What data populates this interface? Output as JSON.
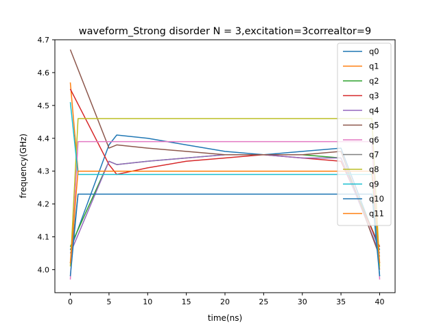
{
  "chart_data": {
    "type": "line",
    "title": "waveform_Strong disorder  N =  3,excitation=3correaltor=9",
    "xlabel": "time(ns)",
    "ylabel": "frequency(GHz)",
    "xlim": [
      -2,
      42
    ],
    "ylim": [
      3.93,
      4.7
    ],
    "xticks": [
      "0",
      "5",
      "10",
      "15",
      "20",
      "25",
      "30",
      "35",
      "40"
    ],
    "xtick_values": [
      0,
      5,
      10,
      15,
      20,
      25,
      30,
      35,
      40
    ],
    "yticks": [
      "4.0",
      "4.1",
      "4.2",
      "4.3",
      "4.4",
      "4.5",
      "4.6",
      "4.7"
    ],
    "ytick_values": [
      4.0,
      4.1,
      4.2,
      4.3,
      4.4,
      4.5,
      4.6,
      4.7
    ],
    "grid": false,
    "legend_position": "upper right",
    "series": [
      {
        "name": "q0",
        "color": "#1f77b4",
        "x": [
          0,
          5,
          6,
          10,
          15,
          20,
          25,
          30,
          35,
          40
        ],
        "y": [
          4.06,
          4.38,
          4.41,
          4.4,
          4.38,
          4.36,
          4.35,
          4.36,
          4.37,
          4.06
        ]
      },
      {
        "name": "q1",
        "color": "#ff7f0e",
        "x": [
          0,
          1,
          10,
          20,
          30,
          39,
          40
        ],
        "y": [
          4.57,
          4.3,
          4.3,
          4.3,
          4.3,
          4.3,
          4.0
        ]
      },
      {
        "name": "q2",
        "color": "#2ca02c",
        "x": [
          0,
          5,
          6,
          10,
          15,
          20,
          25,
          30,
          35,
          40
        ],
        "y": [
          4.07,
          4.33,
          4.32,
          4.33,
          4.34,
          4.35,
          4.35,
          4.35,
          4.34,
          4.07
        ]
      },
      {
        "name": "q3",
        "color": "#d62728",
        "x": [
          0,
          5,
          6,
          10,
          15,
          20,
          25,
          30,
          35,
          40
        ],
        "y": [
          4.55,
          4.32,
          4.29,
          4.31,
          4.33,
          4.34,
          4.35,
          4.34,
          4.33,
          4.07
        ]
      },
      {
        "name": "q4",
        "color": "#9467bd",
        "x": [
          0,
          5,
          6,
          10,
          15,
          20,
          25,
          30,
          35,
          40
        ],
        "y": [
          4.05,
          4.33,
          4.32,
          4.33,
          4.34,
          4.35,
          4.35,
          4.34,
          4.34,
          4.05
        ]
      },
      {
        "name": "q5",
        "color": "#8c564b",
        "x": [
          0,
          5,
          6,
          10,
          15,
          20,
          25,
          30,
          35,
          40
        ],
        "y": [
          4.67,
          4.37,
          4.38,
          4.37,
          4.36,
          4.35,
          4.35,
          4.35,
          4.36,
          4.04
        ]
      },
      {
        "name": "q6",
        "color": "#e377c2",
        "x": [
          0,
          1,
          10,
          20,
          30,
          39,
          40
        ],
        "y": [
          3.97,
          4.39,
          4.39,
          4.39,
          4.39,
          4.39,
          3.97
        ]
      },
      {
        "name": "q7",
        "color": "#7f7f7f",
        "x": [
          0,
          1,
          10,
          20,
          30,
          39,
          40
        ],
        "y": [
          4.02,
          4.23,
          4.23,
          4.23,
          4.23,
          4.23,
          4.02
        ]
      },
      {
        "name": "q8",
        "color": "#bcbd22",
        "x": [
          0,
          1,
          10,
          20,
          30,
          39,
          40
        ],
        "y": [
          4.01,
          4.46,
          4.46,
          4.46,
          4.46,
          4.46,
          4.01
        ]
      },
      {
        "name": "q9",
        "color": "#17becf",
        "x": [
          0,
          1,
          10,
          20,
          30,
          39,
          40
        ],
        "y": [
          4.51,
          4.29,
          4.29,
          4.29,
          4.29,
          4.29,
          3.98
        ]
      },
      {
        "name": "q10",
        "color": "#1f77b4",
        "x": [
          0,
          1,
          10,
          20,
          30,
          39,
          40
        ],
        "y": [
          3.98,
          4.23,
          4.23,
          4.23,
          4.23,
          4.23,
          3.98
        ]
      },
      {
        "name": "q11",
        "color": "#ff7f0e",
        "x": [
          0,
          1,
          10,
          20,
          30,
          39,
          40
        ],
        "y": [
          4.02,
          4.3,
          4.3,
          4.3,
          4.3,
          4.3,
          4.02
        ]
      }
    ]
  }
}
